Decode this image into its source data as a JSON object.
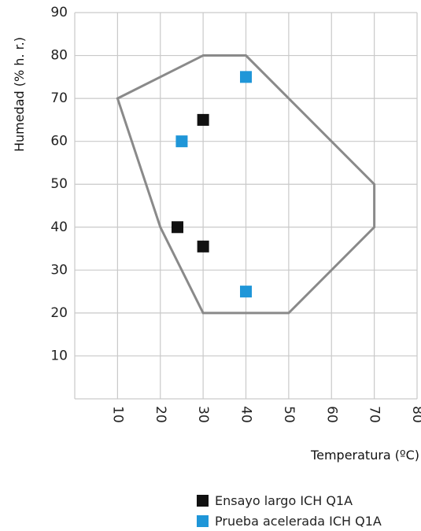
{
  "chart_data": {
    "type": "scatter",
    "xlabel": "Temperatura (ºC)",
    "ylabel": "Humedad (% h. r.)",
    "xlim": [
      0,
      80
    ],
    "ylim": [
      0,
      90
    ],
    "x_ticks": [
      "10",
      "20",
      "30",
      "40",
      "50",
      "60",
      "70",
      "80"
    ],
    "y_ticks": [
      "10",
      "20",
      "30",
      "40",
      "50",
      "60",
      "70",
      "80",
      "90"
    ],
    "grid": true,
    "region_outline": {
      "points": [
        {
          "x": 10,
          "y": 70
        },
        {
          "x": 30,
          "y": 80
        },
        {
          "x": 40,
          "y": 80
        },
        {
          "x": 50,
          "y": 70
        },
        {
          "x": 70,
          "y": 50
        },
        {
          "x": 70,
          "y": 40
        },
        {
          "x": 50,
          "y": 20
        },
        {
          "x": 30,
          "y": 20
        },
        {
          "x": 20,
          "y": 40
        }
      ],
      "color": "#8a8a8a"
    },
    "series": [
      {
        "name": "Ensayo largo ICH Q1A",
        "color": "#111111",
        "points": [
          {
            "x": 30,
            "y": 65
          },
          {
            "x": 24,
            "y": 40
          },
          {
            "x": 30,
            "y": 35.5
          }
        ]
      },
      {
        "name": "Prueba acelerada ICH Q1A",
        "color": "#1f96d8",
        "points": [
          {
            "x": 40,
            "y": 75
          },
          {
            "x": 25,
            "y": 60
          },
          {
            "x": 40,
            "y": 25
          }
        ]
      }
    ],
    "legend_placement": "bottom-right"
  }
}
